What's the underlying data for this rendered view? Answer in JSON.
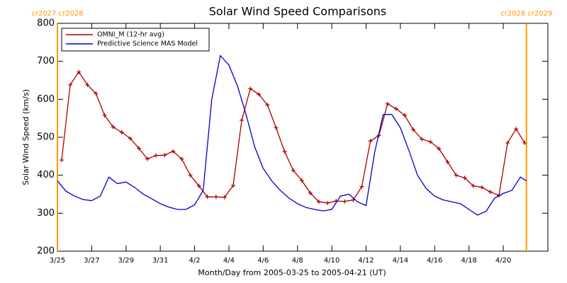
{
  "chart_data": {
    "type": "line",
    "title": "Solar Wind Speed Comparisons",
    "xlabel": "Month/Day from 2005-03-25 to 2005-04-21 (UT)",
    "ylabel": "Solar Wind Speed (km/s)",
    "xlim": [
      0,
      28.6
    ],
    "ylim": [
      200,
      800
    ],
    "xticks": [
      {
        "value": 0,
        "label": "3/25"
      },
      {
        "value": 2,
        "label": "3/27"
      },
      {
        "value": 4,
        "label": "3/29"
      },
      {
        "value": 6,
        "label": "3/31"
      },
      {
        "value": 8,
        "label": "4/2"
      },
      {
        "value": 10,
        "label": "4/4"
      },
      {
        "value": 12,
        "label": "4/6"
      },
      {
        "value": 14,
        "label": "4/8"
      },
      {
        "value": 16,
        "label": "4/10"
      },
      {
        "value": 18,
        "label": "4/12"
      },
      {
        "value": 20,
        "label": "4/14"
      },
      {
        "value": 22,
        "label": "4/16"
      },
      {
        "value": 24,
        "label": "4/18"
      },
      {
        "value": 26,
        "label": "4/20"
      }
    ],
    "yticks": [
      200,
      300,
      400,
      500,
      600,
      700,
      800
    ],
    "legend": "upper left",
    "series": [
      {
        "name": "OMNI_M (12-hr avg)",
        "color": "#aa0000",
        "marker": "+",
        "x": [
          0.25,
          0.75,
          1.25,
          1.75,
          2.25,
          2.75,
          3.25,
          3.75,
          4.25,
          4.75,
          5.25,
          5.75,
          6.25,
          6.75,
          7.25,
          7.75,
          8.25,
          8.75,
          9.25,
          9.75,
          10.25,
          10.75,
          11.25,
          11.75,
          12.25,
          12.75,
          13.25,
          13.75,
          14.25,
          14.75,
          15.25,
          15.75,
          16.25,
          16.75,
          17.25,
          17.75,
          18.25,
          18.75,
          19.25,
          19.75,
          20.25,
          20.75,
          21.25,
          21.75,
          22.25,
          22.75,
          23.25,
          23.75,
          24.25,
          24.75,
          25.25,
          25.75,
          26.25,
          26.75,
          27.25
        ],
        "values": [
          440,
          638,
          672,
          638,
          615,
          558,
          527,
          513,
          497,
          471,
          443,
          452,
          453,
          463,
          443,
          400,
          372,
          343,
          343,
          342,
          373,
          545,
          628,
          613,
          585,
          525,
          462,
          413,
          386,
          353,
          330,
          327,
          332,
          331,
          335,
          370,
          490,
          505,
          588,
          575,
          558,
          520,
          495,
          488,
          470,
          435,
          400,
          393,
          372,
          368,
          356,
          347,
          485,
          522,
          485
        ]
      },
      {
        "name": "Predictive Science MAS Model",
        "color": "#0000cc",
        "marker": "none",
        "x": [
          0,
          0.5,
          1,
          1.5,
          2,
          2.5,
          3,
          3.5,
          4,
          4.5,
          5,
          5.5,
          6,
          6.5,
          7,
          7.5,
          8,
          8.5,
          9,
          9.5,
          10,
          10.5,
          11,
          11.5,
          12,
          12.5,
          13,
          13.5,
          14,
          14.5,
          15,
          15.5,
          16,
          16.5,
          17,
          17.5,
          18,
          18.5,
          19,
          19.5,
          20,
          20.5,
          21,
          21.5,
          22,
          22.5,
          23,
          23.5,
          24,
          24.5,
          25,
          25.5,
          26,
          26.5,
          27,
          27.35
        ],
        "values": [
          385,
          358,
          345,
          336,
          333,
          345,
          395,
          378,
          382,
          368,
          350,
          338,
          325,
          316,
          310,
          310,
          322,
          360,
          600,
          715,
          690,
          635,
          560,
          475,
          418,
          385,
          360,
          340,
          325,
          315,
          310,
          306,
          310,
          345,
          350,
          330,
          320,
          460,
          560,
          560,
          525,
          465,
          400,
          365,
          345,
          335,
          330,
          325,
          310,
          295,
          305,
          340,
          352,
          360,
          395,
          385
        ]
      }
    ],
    "annotations": [
      {
        "x": 0,
        "label": "cr2027 cr2028",
        "color": "#ff9900"
      },
      {
        "x": 27.35,
        "label": "cr2028 cr2029",
        "color": "#ff9900"
      }
    ]
  }
}
